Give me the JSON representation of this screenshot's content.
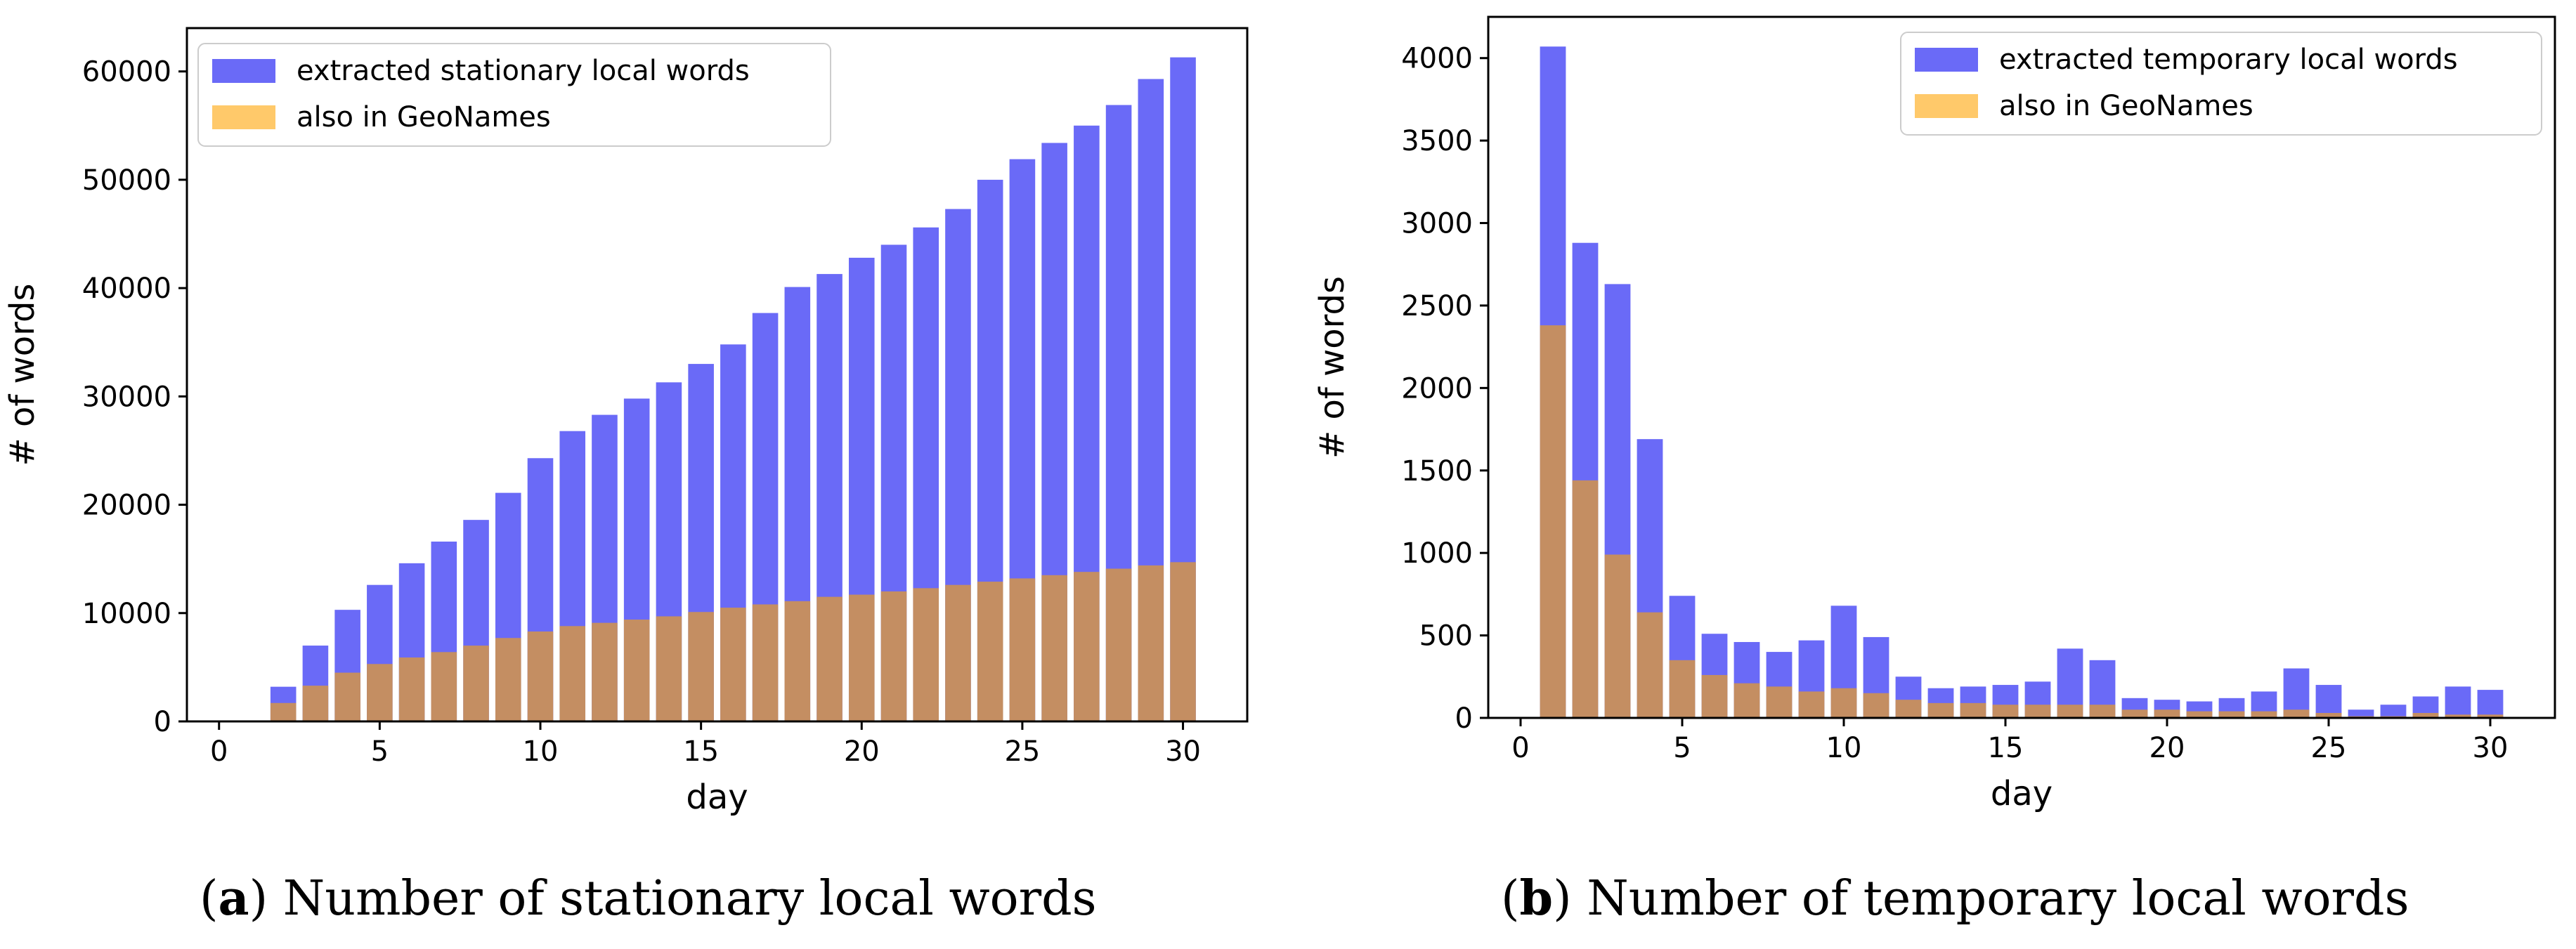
{
  "chart_data": [
    {
      "type": "bar",
      "caption_letter": "a",
      "caption_text": ") Number of stationary local words",
      "xlabel": "day",
      "ylabel": "# of words",
      "xlim": [
        -1,
        32
      ],
      "ylim": [
        0,
        64000
      ],
      "xticks": [
        0,
        5,
        10,
        15,
        20,
        25,
        30
      ],
      "yticks": [
        0,
        10000,
        20000,
        30000,
        40000,
        50000,
        60000
      ],
      "legend_position": "upper left",
      "grid": false,
      "x": [
        2,
        3,
        4,
        5,
        6,
        7,
        8,
        9,
        10,
        11,
        12,
        13,
        14,
        15,
        16,
        17,
        18,
        19,
        20,
        21,
        22,
        23,
        24,
        25,
        26,
        27,
        28,
        29,
        30
      ],
      "series": [
        {
          "name": "extracted stationary local words",
          "color": "#6a6af7",
          "values": [
            3200,
            7000,
            10300,
            12600,
            14600,
            16600,
            18600,
            21100,
            24300,
            26800,
            28300,
            29800,
            31300,
            33000,
            34800,
            37700,
            40100,
            41300,
            42800,
            44000,
            45600,
            47300,
            50000,
            51900,
            53400,
            55000,
            56900,
            59300,
            61300
          ]
        },
        {
          "name": "also in GeoNames",
          "color": "#c48e62",
          "legend_color": "#ffc96a",
          "values": [
            1700,
            3300,
            4500,
            5300,
            5900,
            6400,
            7000,
            7700,
            8300,
            8800,
            9100,
            9400,
            9700,
            10100,
            10500,
            10800,
            11100,
            11500,
            11700,
            12000,
            12300,
            12600,
            12900,
            13200,
            13500,
            13800,
            14100,
            14400,
            14700
          ]
        }
      ]
    },
    {
      "type": "bar",
      "caption_letter": "b",
      "caption_text": ") Number of temporary local words",
      "xlabel": "day",
      "ylabel": "# of words",
      "xlim": [
        -1,
        32
      ],
      "ylim": [
        0,
        4250
      ],
      "xticks": [
        0,
        5,
        10,
        15,
        20,
        25,
        30
      ],
      "yticks": [
        0,
        500,
        1000,
        1500,
        2000,
        2500,
        3000,
        3500,
        4000
      ],
      "legend_position": "upper right",
      "grid": false,
      "x": [
        1,
        2,
        3,
        4,
        5,
        6,
        7,
        8,
        9,
        10,
        11,
        12,
        13,
        14,
        15,
        16,
        17,
        18,
        19,
        20,
        21,
        22,
        23,
        24,
        25,
        26,
        27,
        28,
        29,
        30
      ],
      "series": [
        {
          "name": "extracted temporary local words",
          "color": "#6a6af7",
          "values": [
            4070,
            2880,
            2630,
            1690,
            740,
            510,
            460,
            400,
            470,
            680,
            490,
            250,
            180,
            190,
            200,
            220,
            420,
            350,
            120,
            110,
            100,
            120,
            160,
            300,
            200,
            50,
            80,
            130,
            190,
            170
          ]
        },
        {
          "name": "also in GeoNames",
          "color": "#c48e62",
          "legend_color": "#ffc96a",
          "values": [
            2380,
            1440,
            990,
            640,
            350,
            260,
            210,
            190,
            160,
            180,
            150,
            110,
            90,
            90,
            80,
            80,
            80,
            80,
            50,
            50,
            40,
            40,
            40,
            50,
            30,
            10,
            10,
            30,
            20,
            20
          ]
        }
      ]
    }
  ]
}
